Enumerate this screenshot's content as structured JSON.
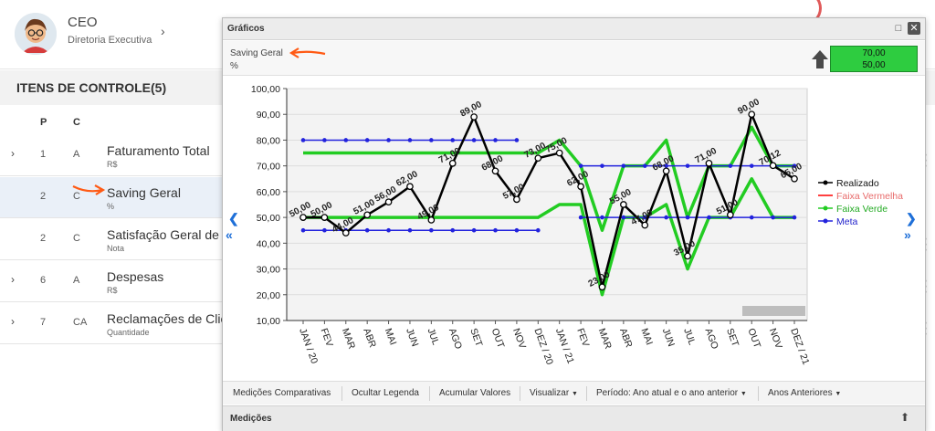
{
  "header": {
    "user_name": "CEO",
    "user_role": "Diretoria Executiva"
  },
  "control": {
    "title": "ITENS DE CONTROLE(5)",
    "col_p": "P",
    "col_c": "C",
    "rows": [
      {
        "p": "1",
        "c": "A",
        "name": "Faturamento Total",
        "unit": "R$",
        "expandable": true
      },
      {
        "p": "2",
        "c": "C",
        "name": "Saving Geral",
        "unit": "%",
        "expandable": false
      },
      {
        "p": "2",
        "c": "C",
        "name": "Satisfação Geral de C",
        "unit": "Nota",
        "expandable": false
      },
      {
        "p": "6",
        "c": "A",
        "name": "Despesas",
        "unit": "R$",
        "expandable": true
      },
      {
        "p": "7",
        "c": "CA",
        "name": "Reclamações de Clien",
        "unit": "Quantidade",
        "expandable": true
      }
    ]
  },
  "dialog": {
    "title": "Gráficos",
    "indicator_name": "Saving Geral",
    "indicator_unit": "%",
    "goal_top": "70,00",
    "goal_bottom": "50,00",
    "toolbar": {
      "comparativas": "Medições Comparativas",
      "ocultar": "Ocultar Legenda",
      "acumular": "Acumular Valores",
      "visualizar": "Visualizar",
      "periodo": "Período: Ano atual e o ano anterior",
      "anos": "Anos Anteriores"
    },
    "medicoes": "Medições"
  },
  "chart_data": {
    "type": "line",
    "categories": [
      "JAN / 20",
      "FEV",
      "MAR",
      "ABR",
      "MAI",
      "JUN",
      "JUL",
      "AGO",
      "SET",
      "OUT",
      "NOV",
      "DEZ / 20",
      "JAN / 21",
      "FEV",
      "MAR",
      "ABR",
      "MAI",
      "JUN",
      "JUL",
      "AGO",
      "SET",
      "OUT",
      "NOV",
      "DEZ / 21"
    ],
    "ylim": [
      10,
      100
    ],
    "yticks": [
      "10,00",
      "20,00",
      "30,00",
      "40,00",
      "50,00",
      "60,00",
      "70,00",
      "80,00",
      "90,00",
      "100,00"
    ],
    "grid": true,
    "legend_position": "right",
    "legend": [
      "Realizado",
      "Faixa Vermelha",
      "Faixa Verde",
      "Meta"
    ],
    "colors": {
      "realizado": "#000000",
      "vermelha": "#ff0000",
      "verde": "#22cc22",
      "meta": "#2222dd"
    },
    "series": [
      {
        "name": "Realizado",
        "values": [
          50,
          50,
          44,
          51,
          56,
          62,
          49,
          71,
          89,
          68,
          57,
          73,
          75,
          62,
          23,
          55,
          47,
          68,
          35,
          71,
          51,
          90,
          70.12,
          65
        ],
        "labels": [
          "50,00",
          "50,00",
          "44,00",
          "51,00",
          "56,00",
          "62,00",
          "49,00",
          "71,00",
          "89,00",
          "68,00",
          "57,00",
          "73,00",
          "75,00",
          "62,00",
          "23,00",
          "55,00",
          "47,00",
          "68,00",
          "35,00",
          "71,00",
          "51,00",
          "90,00",
          "70,12",
          "65,00"
        ]
      },
      {
        "name": "Faixa Verde upper",
        "values": [
          75,
          75,
          75,
          75,
          75,
          75,
          75,
          75,
          75,
          75,
          75,
          75,
          80,
          70,
          45,
          70,
          70,
          80,
          50,
          70,
          70,
          85,
          70,
          70
        ]
      },
      {
        "name": "Faixa Verde lower",
        "values": [
          50,
          50,
          50,
          50,
          50,
          50,
          50,
          50,
          50,
          50,
          50,
          50,
          55,
          55,
          20,
          50,
          50,
          55,
          30,
          50,
          50,
          65,
          50,
          50
        ]
      },
      {
        "name": "Meta upper",
        "values": [
          80,
          80,
          80,
          80,
          80,
          80,
          80,
          80,
          80,
          80,
          80,
          null,
          null,
          70,
          70,
          70,
          70,
          70,
          70,
          70,
          70,
          70,
          70,
          70
        ]
      },
      {
        "name": "Meta lower",
        "values": [
          45,
          45,
          45,
          45,
          45,
          45,
          45,
          45,
          45,
          45,
          45,
          45,
          null,
          50,
          50,
          50,
          50,
          50,
          50,
          50,
          50,
          50,
          50,
          50
        ]
      }
    ]
  }
}
